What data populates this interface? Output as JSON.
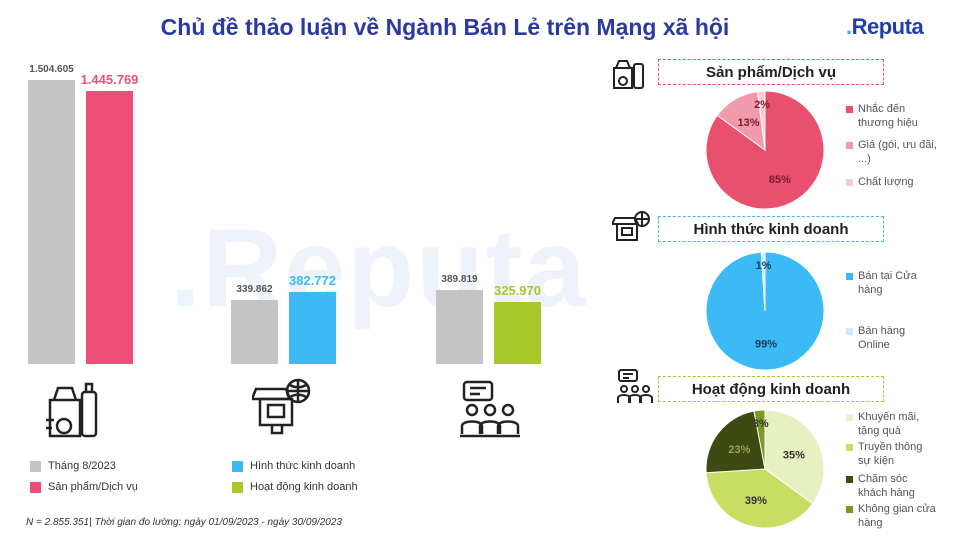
{
  "header": {
    "title": "Chủ đề thảo luận về Ngành Bán Lẻ trên Mạng xã hội"
  },
  "logo": {
    "text": "Reputa",
    "watermark": "Reputa"
  },
  "chart_data": [
    {
      "type": "bar",
      "groups": [
        {
          "icon": "grocery-bag-icon",
          "baseline": 1504605,
          "baseline_label": "1.504.605",
          "value": 1445769,
          "value_label": "1.445.769",
          "color": "#ee4f78"
        },
        {
          "icon": "online-store-icon",
          "baseline": 339862,
          "baseline_label": "339.862",
          "value": 382772,
          "value_label": "382.772",
          "color": "#3bbaf5"
        },
        {
          "icon": "meeting-group-icon",
          "baseline": 389819,
          "baseline_label": "389.819",
          "value": 325970,
          "value_label": "325.970",
          "color": "#a8c82a"
        }
      ],
      "baseline_color": "#c4c4c4",
      "legend": [
        {
          "label": "Tháng 8/2023",
          "color": "#c4c4c4"
        },
        {
          "label": "Sản phẩm/Dịch vụ",
          "color": "#ee4f78"
        },
        {
          "label": "Hình thức kinh doanh",
          "color": "#3bbaf5"
        },
        {
          "label": "Hoạt động kinh doanh",
          "color": "#a8c82a"
        }
      ],
      "ymax": 1504605
    },
    {
      "type": "pie",
      "title": "Sản phẩm/Dịch vụ",
      "icon": "grocery-icon",
      "border_color": "#e8506e",
      "slices": [
        {
          "label": "Nhắc đến thương hiệu",
          "value": 85,
          "value_label": "85%",
          "color": "#e8506e"
        },
        {
          "label": "Giá (gói, ưu đãi, ...)",
          "value": 13,
          "value_label": "13%",
          "color": "#f09aac"
        },
        {
          "label": "Chất lượng",
          "value": 2,
          "value_label": "2%",
          "color": "#f8cad4"
        }
      ]
    },
    {
      "type": "pie",
      "title": "Hình thức kinh doanh",
      "icon": "store-icon",
      "border_color": "#3bbaf5",
      "slices": [
        {
          "label": "Bán tại Cửa hàng",
          "value": 99,
          "value_label": "99%",
          "color": "#3bbaf5"
        },
        {
          "label": "Bán hàng Online",
          "value": 1,
          "value_label": "1%",
          "color": "#c8ecfb"
        }
      ]
    },
    {
      "type": "pie",
      "title": "Hoạt động kinh doanh",
      "icon": "people-icon",
      "border_color": "#a8c82a",
      "slices": [
        {
          "label": "Khuyến mãi, tặng quà",
          "value": 35,
          "value_label": "35%",
          "color": "#e6f0c0"
        },
        {
          "label": "Truyền thông sự kiện",
          "value": 39,
          "value_label": "39%",
          "color": "#c7de62"
        },
        {
          "label": "Chăm sóc khách hàng",
          "value": 23,
          "value_label": "23%",
          "color": "#3d4a12"
        },
        {
          "label": "Không gian cửa hàng",
          "value": 3,
          "value_label": "3%",
          "color": "#7a9a22"
        }
      ]
    }
  ],
  "footnote": "N = 2.855.351| Thời gian đo lường: ngày 01/09/2023 - ngày 30/09/2023"
}
